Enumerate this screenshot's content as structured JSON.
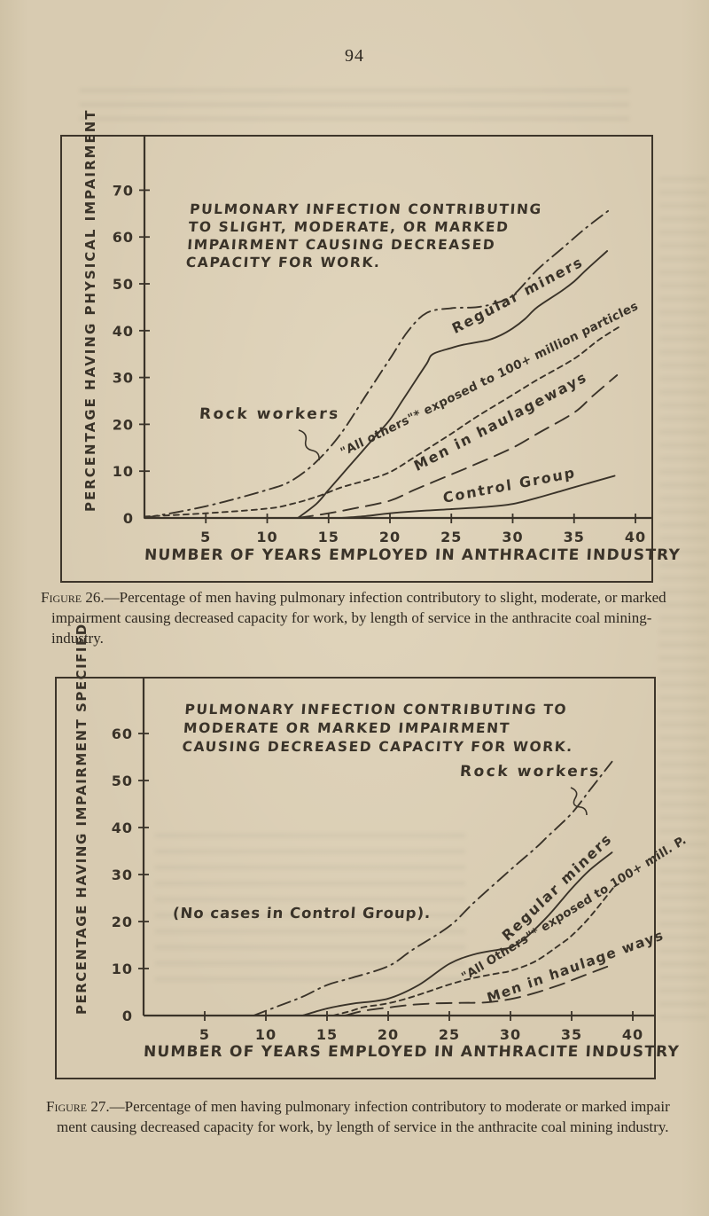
{
  "page": {
    "number": "94",
    "paper_color": "#d8cbb1",
    "ink_color": "#3a3329"
  },
  "chart_data": [
    {
      "type": "line",
      "figure": "Figure 26",
      "title_lines": [
        "PULMONARY INFECTION CONTRIBUTING",
        "TO SLIGHT, MODERATE, OR MARKED",
        "IMPAIRMENT CAUSING DECREASED",
        "CAPACITY FOR WORK."
      ],
      "xlabel": "NUMBER OF YEARS EMPLOYED IN ANTHRACITE INDUSTRY",
      "ylabel": "PERCENTAGE HAVING PHYSICAL IMPAIRMENT",
      "xlim": [
        0,
        41.5
      ],
      "ylim": [
        0,
        81
      ],
      "x_ticks": [
        5,
        10,
        15,
        20,
        25,
        30,
        35,
        40
      ],
      "y_ticks": [
        0,
        10,
        20,
        30,
        40,
        50,
        60,
        70
      ],
      "grid": false,
      "legend_position": "labels-on-curves",
      "series": [
        {
          "id": "rock-workers",
          "label": "Rock workers",
          "line_style": "dashdot",
          "x": [
            0,
            5,
            10,
            12,
            14,
            16,
            18,
            20,
            21.5,
            23,
            25,
            27,
            28.5,
            30,
            32,
            34,
            36,
            38
          ],
          "y": [
            0,
            2.5,
            6,
            8,
            12,
            18,
            26,
            34,
            40,
            43.8,
            44.8,
            45,
            45.8,
            47.5,
            53,
            57.5,
            62,
            66
          ]
        },
        {
          "id": "regular-miners",
          "label": "Regular miners",
          "line_style": "solid",
          "x": [
            12.5,
            14,
            15,
            16,
            17,
            18,
            19,
            20,
            21,
            22,
            23,
            23.5,
            25,
            26,
            28,
            29,
            30,
            31,
            32,
            34,
            35,
            36,
            37.7
          ],
          "y": [
            0,
            3,
            6,
            9,
            12,
            15,
            18,
            21,
            25,
            29,
            33,
            35,
            36.3,
            37,
            38,
            39,
            40.5,
            42.5,
            45,
            48.5,
            50.5,
            53,
            57
          ]
        },
        {
          "id": "all-others",
          "label": "\"All others\"* exposed to 100+ million particles",
          "line_style": "dash",
          "x": [
            0,
            5,
            10,
            12,
            14,
            16,
            18,
            20,
            22,
            25,
            27,
            30,
            32,
            35,
            37,
            38.8
          ],
          "y": [
            0.3,
            1,
            2,
            3,
            4.5,
            6.5,
            8,
            9.8,
            13,
            18,
            21.5,
            26.3,
            29.5,
            34,
            38,
            41
          ]
        },
        {
          "id": "men-haulageways",
          "label": "Men in haulageways",
          "line_style": "longdash",
          "x": [
            12.5,
            15,
            17,
            20,
            22,
            25,
            27,
            30,
            32,
            35,
            36.5,
            38.5
          ],
          "y": [
            0,
            1,
            2,
            3.7,
            6,
            9.3,
            11.5,
            15,
            18,
            22.5,
            26,
            30.5
          ]
        },
        {
          "id": "control-group",
          "label": "Control Group",
          "line_style": "solid",
          "x": [
            16,
            18,
            20,
            23,
            25,
            28,
            30,
            32,
            34,
            36,
            38.3
          ],
          "y": [
            0,
            0.4,
            1,
            1.6,
            1.9,
            2.4,
            3,
            4.3,
            5.8,
            7.3,
            9
          ]
        }
      ],
      "caption": {
        "label": "Figure 26.",
        "lines": [
          "—Percentage of men having pulmonary infection contributory to slight, moderate, or marked",
          "impairment causing decreased capacity for work, by length of service in the anthracite coal mining-",
          "industry."
        ]
      }
    },
    {
      "type": "line",
      "figure": "Figure 27",
      "title_lines": [
        "PULMONARY INFECTION CONTRIBUTING TO",
        "MODERATE OR MARKED IMPAIRMENT",
        "CAUSING DECREASED CAPACITY FOR WORK."
      ],
      "xlabel": "NUMBER OF YEARS EMPLOYED IN ANTHRACITE INDUSTRY",
      "ylabel": "PERCENTAGE HAVING IMPAIRMENT SPECIFIED",
      "annotation": "(No cases in Control Group).",
      "xlim": [
        0,
        42
      ],
      "ylim": [
        0,
        71
      ],
      "x_ticks": [
        5,
        10,
        15,
        20,
        25,
        30,
        35,
        40
      ],
      "y_ticks": [
        0,
        10,
        20,
        30,
        40,
        50,
        60
      ],
      "grid": false,
      "legend_position": "labels-on-curves",
      "series": [
        {
          "id": "rock-workers",
          "label": "Rock workers",
          "line_style": "dashdot",
          "x": [
            9,
            11,
            13,
            15,
            17,
            20,
            22,
            25,
            27,
            30,
            32,
            33,
            35,
            36.5,
            38.3
          ],
          "y": [
            0,
            2,
            4,
            6.5,
            8,
            10.5,
            14,
            19,
            24,
            31,
            35.5,
            38,
            43,
            48,
            54
          ]
        },
        {
          "id": "regular-miners",
          "label": "Regular miners",
          "line_style": "solid",
          "x": [
            13,
            15,
            17,
            20,
            22.5,
            25,
            27,
            29,
            30,
            31,
            33,
            35,
            36.5,
            38.3
          ],
          "y": [
            0,
            1.5,
            2.5,
            3.6,
            6.5,
            11,
            13,
            14,
            14.5,
            16,
            21,
            27,
            31,
            34.7
          ]
        },
        {
          "id": "all-others",
          "label": "\"All Others\"* exposed to 100+ mill. P.",
          "line_style": "dash",
          "x": [
            15.5,
            17,
            18,
            20,
            22,
            25,
            27,
            29,
            30,
            32,
            34,
            35,
            36.5,
            38.5
          ],
          "y": [
            0,
            1,
            1.8,
            2.6,
            4,
            6.6,
            8,
            9,
            9.5,
            11.5,
            15,
            17,
            21,
            27.5
          ]
        },
        {
          "id": "men-haulageways",
          "label": "Men in haulage ways",
          "line_style": "longdash",
          "x": [
            16.5,
            18,
            20,
            22,
            24,
            26,
            28,
            30,
            32,
            34,
            35,
            37,
            38.5
          ],
          "y": [
            0,
            1,
            1.7,
            2.3,
            2.6,
            2.7,
            2.8,
            3.5,
            4.8,
            6.5,
            7.5,
            9.5,
            11
          ]
        }
      ],
      "caption": {
        "label": "Figure 27.",
        "lines": [
          "—Percentage of men having pulmonary infection contributory to moderate or marked impair",
          "ment causing decreased capacity for work, by length of service in the anthracite coal mining industry."
        ]
      }
    }
  ]
}
